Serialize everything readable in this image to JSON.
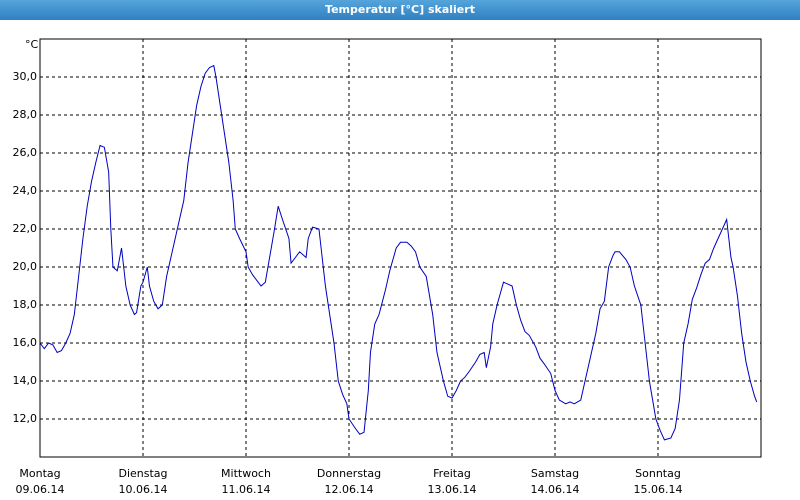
{
  "chart_data": {
    "type": "line",
    "title": "Temperatur [°C] skaliert",
    "y_unit": "°C",
    "x": [
      0,
      1,
      2,
      3,
      4,
      5,
      6,
      7,
      8,
      9,
      10,
      11,
      12,
      13,
      14,
      15,
      16,
      16.5,
      17,
      18,
      19,
      19.5,
      20,
      21,
      22,
      22.5,
      23.5,
      24,
      25,
      25.5,
      26.5,
      27.5,
      28.5,
      29.5,
      30.5,
      31.5,
      32.5,
      33.5,
      34.5,
      35.5,
      36.5,
      37.5,
      38.5,
      39.5,
      40.5,
      41,
      42,
      43,
      44,
      45,
      45.5,
      46.5,
      48,
      48.5,
      49.5,
      50.5,
      51.5,
      52.5,
      53.5,
      54.5,
      55.5,
      56.5,
      58,
      58.5,
      59.5,
      60.5,
      62,
      62.5,
      63.5,
      65,
      65.5,
      66.5,
      67.5,
      68.5,
      69.5,
      70.5,
      71.5,
      72,
      73.5,
      74.5,
      75.5,
      76.5,
      77,
      78,
      79,
      80.5,
      81.5,
      83,
      84,
      85.5,
      86.5,
      87.5,
      88.5,
      90,
      91.5,
      92.5,
      94,
      95,
      96,
      97,
      98,
      99,
      100,
      101.5,
      102.5,
      103.5,
      104,
      105,
      105.5,
      106.5,
      107.5,
      108,
      109,
      110,
      111,
      112,
      113,
      114,
      115.5,
      116.5,
      117.5,
      119,
      120,
      121,
      122.5,
      123.5,
      124.5,
      126,
      127,
      128,
      129.5,
      130.5,
      131.5,
      132.5,
      133.5,
      134,
      135,
      136.5,
      137.5,
      138.5,
      140,
      141,
      142,
      143.5,
      144.5,
      145.5,
      147,
      148,
      149,
      150,
      151,
      152,
      153,
      154,
      155,
      156,
      157,
      158,
      159,
      160,
      161,
      161.5,
      162.5,
      163.5,
      164.5,
      165.5,
      166.5,
      167
    ],
    "series": [
      {
        "name": "Temperatur",
        "color": "#0000c0",
        "values": [
          16.0,
          15.7,
          16.0,
          15.9,
          15.5,
          15.6,
          16.0,
          16.5,
          17.5,
          19.5,
          21.5,
          23.2,
          24.5,
          25.5,
          26.4,
          26.3,
          25.0,
          22.0,
          20.0,
          19.8,
          21.0,
          20.0,
          19.0,
          18.0,
          17.5,
          17.6,
          19.0,
          19.2,
          20.0,
          19.0,
          18.2,
          17.8,
          18.0,
          19.5,
          20.5,
          21.5,
          22.5,
          23.5,
          25.5,
          27.0,
          28.5,
          29.5,
          30.2,
          30.5,
          30.6,
          30.0,
          28.5,
          27.0,
          25.5,
          23.5,
          22.0,
          21.5,
          20.8,
          20.0,
          19.6,
          19.3,
          19.0,
          19.2,
          20.5,
          21.8,
          23.2,
          22.5,
          21.5,
          20.2,
          20.5,
          20.8,
          20.5,
          21.5,
          22.1,
          22.0,
          21.0,
          19.0,
          17.5,
          16.0,
          14.0,
          13.3,
          12.8,
          12.0,
          11.5,
          11.2,
          11.3,
          13.5,
          15.5,
          17.0,
          17.5,
          18.8,
          19.8,
          21.0,
          21.3,
          21.3,
          21.1,
          20.8,
          20.0,
          19.5,
          17.5,
          15.5,
          14.0,
          13.2,
          13.1,
          13.5,
          14.0,
          14.2,
          14.5,
          15.0,
          15.4,
          15.5,
          14.7,
          15.8,
          17.0,
          18.0,
          18.8,
          19.2,
          19.1,
          19.0,
          18.0,
          17.2,
          16.6,
          16.4,
          15.8,
          15.2,
          14.9,
          14.4,
          13.5,
          13.0,
          12.8,
          12.9,
          12.8,
          13.0,
          14.0,
          15.0,
          16.5,
          17.8,
          18.2,
          20.0,
          20.6,
          20.8,
          20.8,
          20.4,
          20.0,
          19.0,
          18.0,
          16.0,
          14.0,
          12.0,
          11.4,
          10.9,
          11.0,
          11.5,
          13.0,
          16.0,
          17.0,
          18.3,
          18.9,
          19.6,
          20.2,
          20.4,
          21.0,
          21.5,
          22.0,
          22.5,
          20.5,
          20.0,
          18.5,
          16.5,
          15.0,
          14.0,
          13.2,
          12.9
        ]
      }
    ],
    "xlim": [
      0,
      168
    ],
    "ylim": [
      10,
      32
    ],
    "xticks": [
      {
        "value": 0,
        "label": "Montag"
      },
      {
        "value": 24,
        "label": "Dienstag"
      },
      {
        "value": 48,
        "label": "Mittwoch"
      },
      {
        "value": 72,
        "label": "Donnerstag"
      },
      {
        "value": 96,
        "label": "Freitag"
      },
      {
        "value": 120,
        "label": "Samstag"
      },
      {
        "value": 144,
        "label": "Sonntag"
      }
    ],
    "xtick_dates": [
      "09.06.14",
      "10.06.14",
      "11.06.14",
      "12.06.14",
      "13.06.14",
      "14.06.14",
      "15.06.14"
    ],
    "yticks": [
      {
        "value": 12,
        "label": "12,0"
      },
      {
        "value": 14,
        "label": "14,0"
      },
      {
        "value": 16,
        "label": "16,0"
      },
      {
        "value": 18,
        "label": "18,0"
      },
      {
        "value": 20,
        "label": "20,0"
      },
      {
        "value": 22,
        "label": "22,0"
      },
      {
        "value": 24,
        "label": "24,0"
      },
      {
        "value": 26,
        "label": "26,0"
      },
      {
        "value": 28,
        "label": "28,0"
      },
      {
        "value": 30,
        "label": "30,0"
      }
    ],
    "grid": true
  }
}
